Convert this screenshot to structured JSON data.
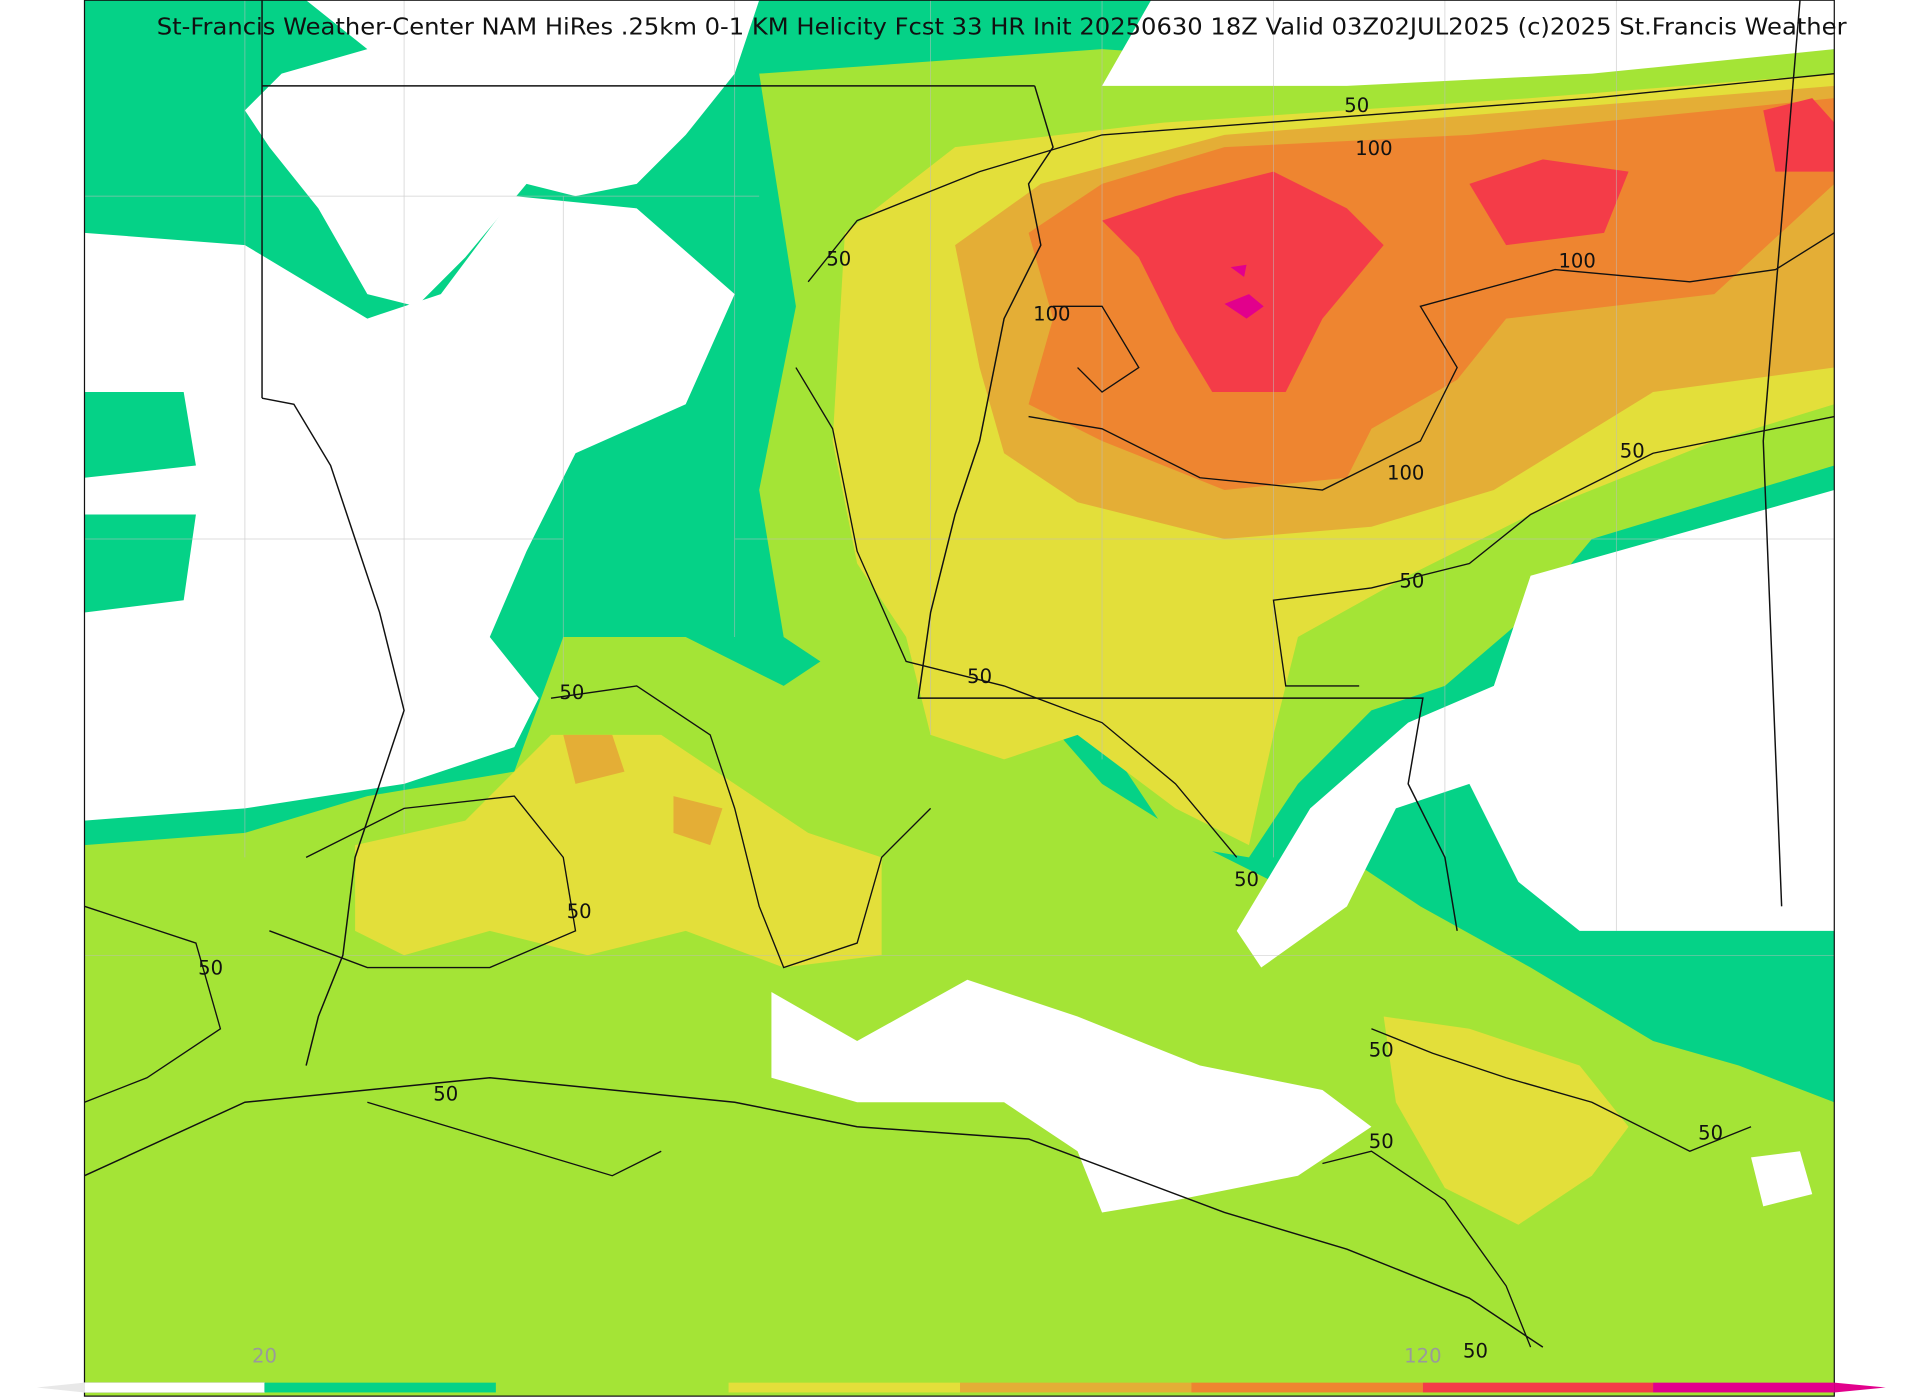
{
  "title": "St-Francis Weather-Center NAM HiRes .25km 0-1 KM Helicity Fcst 33 HR Init 20250630 18Z  Valid 03Z02JUL2025    (c)2025 St.Francis Weather",
  "contour_labels": [
    "50",
    "100",
    "100",
    "50",
    "100",
    "100",
    "50",
    "50",
    "50",
    "50",
    "50",
    "50",
    "50",
    "50",
    "50",
    "50",
    "50",
    "50"
  ],
  "colorbar_labels": [
    "20",
    "120"
  ]
}
